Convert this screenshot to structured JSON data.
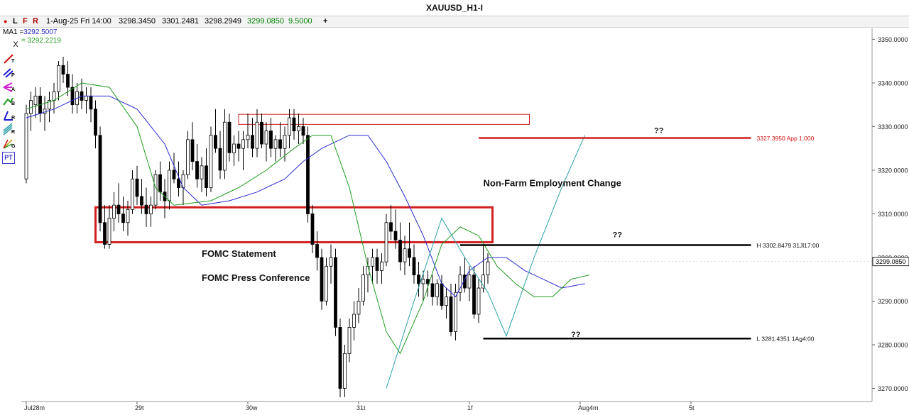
{
  "window": {
    "title": "XAUUSD_H1-I"
  },
  "info_bar": {
    "mode_buttons": [
      "L",
      "F",
      "R"
    ],
    "date": "1-Aug-25 Fri 14:00",
    "open": "3298.3450",
    "high": "3301.2481",
    "low": "3298.2949",
    "close": "3299.0850",
    "volume": "9.5000",
    "add_symbol": "+"
  },
  "indicators": {
    "ma_label": "MA1 =",
    "ma1_value": "3292.5007",
    "ma2_value": "= 3292.2219",
    "close_icon": "X",
    "ma1_color": "#2a2ad0",
    "ma2_color": "#1f9a1f"
  },
  "toolbar": [
    {
      "icon": "trendline-icon",
      "label": "T"
    },
    {
      "icon": "parallel-channel-icon",
      "label": "P"
    },
    {
      "icon": "pitchfork-icon",
      "label": "A"
    },
    {
      "icon": "brush-icon",
      "label": "B"
    },
    {
      "icon": "ray-icon",
      "label": "R"
    },
    {
      "icon": "regression-icon",
      "label": "R"
    },
    {
      "icon": "gann-icon",
      "label": "G"
    },
    {
      "icon": "pt-icon",
      "label": "PT"
    }
  ],
  "colors": {
    "bull": "#ffffff",
    "bear": "#000000",
    "zone": "#d22020",
    "fast_line": "#2aa0a8",
    "label_red": "#d01010"
  },
  "chart_data": {
    "type": "candlestick",
    "symbol": "XAUUSD",
    "timeframe": "H1",
    "ylim": [
      3267.0,
      3352.5
    ],
    "y_ticks": [
      "3350.0000",
      "3340.0000",
      "3330.0000",
      "3320.0000",
      "3310.0000",
      "3300.0000",
      "3290.0000",
      "3280.0000",
      "3270.0000"
    ],
    "y_tick_values": [
      3350,
      3340,
      3330,
      3320,
      3310,
      3300,
      3290,
      3280,
      3270
    ],
    "current_price_label": "3299.0850",
    "current_price": 3299.085,
    "x_tick_labels": [
      "Jul28m",
      "29t",
      "30w",
      "31t",
      "1f",
      "Aug4m",
      "5t"
    ],
    "x_tick_bars": [
      0,
      24,
      48,
      72,
      96,
      120,
      144
    ],
    "bars": [
      [
        3318,
        3335,
        3317,
        3333
      ],
      [
        3333,
        3338,
        3329,
        3336
      ],
      [
        3335,
        3339,
        3332,
        3337
      ],
      [
        3337,
        3339,
        3331,
        3333
      ],
      [
        3333,
        3337,
        3329,
        3334
      ],
      [
        3334,
        3338,
        3331,
        3336
      ],
      [
        3336,
        3340,
        3333,
        3338
      ],
      [
        3338,
        3345,
        3336,
        3344
      ],
      [
        3344,
        3346,
        3340,
        3342
      ],
      [
        3342,
        3345,
        3337,
        3339
      ],
      [
        3339,
        3342,
        3333,
        3335
      ],
      [
        3335,
        3340,
        3333,
        3338
      ],
      [
        3338,
        3341,
        3334,
        3336
      ],
      [
        3336,
        3339,
        3333,
        3337
      ],
      [
        3337,
        3339,
        3331,
        3334
      ],
      [
        3334,
        3336,
        3325,
        3328
      ],
      [
        3328,
        3330,
        3306,
        3308
      ],
      [
        3308,
        3312,
        3302,
        3303
      ],
      [
        3303,
        3312,
        3302,
        3309
      ],
      [
        3309,
        3315,
        3306,
        3312
      ],
      [
        3312,
        3317,
        3308,
        3310
      ],
      [
        3310,
        3314,
        3306,
        3308
      ],
      [
        3308,
        3313,
        3305,
        3311
      ],
      [
        3311,
        3320,
        3310,
        3318
      ],
      [
        3318,
        3321,
        3312,
        3314
      ],
      [
        3314,
        3318,
        3310,
        3312
      ],
      [
        3312,
        3316,
        3307,
        3310
      ],
      [
        3310,
        3314,
        3307,
        3312
      ],
      [
        3312,
        3320,
        3311,
        3319
      ],
      [
        3319,
        3322,
        3313,
        3315
      ],
      [
        3315,
        3318,
        3309,
        3313
      ],
      [
        3313,
        3322,
        3311,
        3320
      ],
      [
        3320,
        3324,
        3317,
        3318
      ],
      [
        3318,
        3322,
        3314,
        3316
      ],
      [
        3316,
        3320,
        3312,
        3319
      ],
      [
        3319,
        3329,
        3318,
        3327
      ],
      [
        3327,
        3331,
        3320,
        3322
      ],
      [
        3322,
        3326,
        3316,
        3318
      ],
      [
        3318,
        3323,
        3315,
        3321
      ],
      [
        3321,
        3325,
        3314,
        3316
      ],
      [
        3316,
        3330,
        3315,
        3328
      ],
      [
        3328,
        3334,
        3324,
        3325
      ],
      [
        3325,
        3329,
        3318,
        3320
      ],
      [
        3320,
        3334,
        3318,
        3331
      ],
      [
        3331,
        3333,
        3322,
        3324
      ],
      [
        3324,
        3328,
        3321,
        3326
      ],
      [
        3326,
        3329,
        3322,
        3325
      ],
      [
        3325,
        3329,
        3320,
        3327
      ],
      [
        3327,
        3333,
        3325,
        3328
      ],
      [
        3328,
        3332,
        3323,
        3325
      ],
      [
        3325,
        3334,
        3323,
        3331
      ],
      [
        3331,
        3333,
        3325,
        3326
      ],
      [
        3326,
        3331,
        3322,
        3329
      ],
      [
        3329,
        3332,
        3323,
        3325
      ],
      [
        3325,
        3328,
        3322,
        3327
      ],
      [
        3327,
        3331,
        3323,
        3325
      ],
      [
        3325,
        3330,
        3322,
        3328
      ],
      [
        3328,
        3334,
        3325,
        3332
      ],
      [
        3332,
        3334,
        3327,
        3329
      ],
      [
        3329,
        3333,
        3326,
        3330
      ],
      [
        3330,
        3332,
        3326,
        3328
      ],
      [
        3328,
        3330,
        3308,
        3310
      ],
      [
        3310,
        3312,
        3301,
        3303
      ],
      [
        3303,
        3306,
        3297,
        3300
      ],
      [
        3300,
        3302,
        3288,
        3290
      ],
      [
        3290,
        3300,
        3289,
        3298
      ],
      [
        3298,
        3303,
        3294,
        3300
      ],
      [
        3300,
        3302,
        3282,
        3284
      ],
      [
        3284,
        3286,
        3268,
        3270
      ],
      [
        3270,
        3280,
        3268,
        3278
      ],
      [
        3278,
        3286,
        3276,
        3284
      ],
      [
        3284,
        3290,
        3281,
        3287
      ],
      [
        3287,
        3293,
        3285,
        3290
      ],
      [
        3290,
        3298,
        3289,
        3296
      ],
      [
        3296,
        3300,
        3292,
        3298
      ],
      [
        3298,
        3302,
        3294,
        3300
      ],
      [
        3300,
        3302,
        3294,
        3297
      ],
      [
        3297,
        3301,
        3294,
        3299
      ],
      [
        3299,
        3310,
        3298,
        3308
      ],
      [
        3308,
        3312,
        3304,
        3306
      ],
      [
        3306,
        3311,
        3302,
        3304
      ],
      [
        3304,
        3308,
        3297,
        3299
      ],
      [
        3299,
        3305,
        3296,
        3302
      ],
      [
        3302,
        3308,
        3298,
        3300
      ],
      [
        3300,
        3303,
        3294,
        3296
      ],
      [
        3296,
        3299,
        3291,
        3294
      ],
      [
        3294,
        3297,
        3290,
        3295
      ],
      [
        3295,
        3297,
        3291,
        3294
      ],
      [
        3294,
        3296,
        3289,
        3291
      ],
      [
        3291,
        3295,
        3289,
        3294
      ],
      [
        3294,
        3296,
        3288,
        3289
      ],
      [
        3289,
        3293,
        3286,
        3291
      ],
      [
        3291,
        3294,
        3282,
        3283
      ],
      [
        3283,
        3294,
        3281,
        3292
      ],
      [
        3292,
        3298,
        3290,
        3296
      ],
      [
        3296,
        3300,
        3292,
        3293
      ],
      [
        3293,
        3298,
        3290,
        3296
      ],
      [
        3296,
        3298,
        3286,
        3287
      ],
      [
        3287,
        3295,
        3285,
        3293
      ],
      [
        3293,
        3303,
        3292,
        3296
      ],
      [
        3296,
        3301,
        3294,
        3299
      ]
    ],
    "ma1_blue": [
      [
        0,
        3332
      ],
      [
        6,
        3334
      ],
      [
        12,
        3337
      ],
      [
        18,
        3337
      ],
      [
        24,
        3334
      ],
      [
        30,
        3326
      ],
      [
        34,
        3316
      ],
      [
        38,
        3312
      ],
      [
        44,
        3313
      ],
      [
        50,
        3315
      ],
      [
        56,
        3318
      ],
      [
        60,
        3322
      ],
      [
        64,
        3325
      ],
      [
        70,
        3328
      ],
      [
        74,
        3328
      ],
      [
        78,
        3322
      ],
      [
        82,
        3314
      ],
      [
        86,
        3305
      ],
      [
        90,
        3294
      ],
      [
        93,
        3291
      ],
      [
        96,
        3297
      ],
      [
        100,
        3300
      ],
      [
        104,
        3300
      ],
      [
        108,
        3297
      ],
      [
        112,
        3295
      ],
      [
        116,
        3293
      ],
      [
        121,
        3294
      ]
    ],
    "ma2_green": [
      [
        0,
        3334
      ],
      [
        6,
        3336
      ],
      [
        12,
        3340
      ],
      [
        18,
        3339
      ],
      [
        24,
        3330
      ],
      [
        28,
        3316
      ],
      [
        32,
        3312
      ],
      [
        40,
        3313
      ],
      [
        46,
        3316
      ],
      [
        52,
        3320
      ],
      [
        58,
        3325
      ],
      [
        62,
        3328
      ],
      [
        66,
        3328
      ],
      [
        70,
        3316
      ],
      [
        74,
        3298
      ],
      [
        78,
        3283
      ],
      [
        81,
        3278
      ],
      [
        86,
        3290
      ],
      [
        90,
        3303
      ],
      [
        94,
        3307
      ],
      [
        98,
        3305
      ],
      [
        102,
        3298
      ],
      [
        106,
        3294
      ],
      [
        110,
        3291
      ],
      [
        114,
        3291
      ],
      [
        118,
        3295
      ],
      [
        122,
        3296
      ]
    ],
    "projection": [
      [
        78,
        3270
      ],
      [
        84,
        3290
      ],
      [
        90,
        3309
      ],
      [
        95,
        3300
      ],
      [
        100,
        3292
      ],
      [
        104,
        3282
      ],
      [
        110,
        3300
      ],
      [
        116,
        3316
      ],
      [
        121,
        3328
      ]
    ],
    "zones": [
      {
        "x1": 46,
        "x2": 109,
        "y_low": 3330.5,
        "y_high": 3332.8,
        "weight": "thin"
      },
      {
        "x1": 15,
        "x2": 101,
        "y_low": 3303.5,
        "y_high": 3311.5,
        "weight": "thick"
      }
    ],
    "level_lines": [
      {
        "y": 3327.395,
        "x1": 98,
        "x2": 157,
        "color": "#d22020",
        "label": "3327.3950 App 1.000"
      },
      {
        "y": 3302.8479,
        "x1": 94,
        "x2": 157,
        "color": "#000000",
        "label": "H 3302.8479 31Jl17:00"
      },
      {
        "y": 3281.4351,
        "x1": 99,
        "x2": 157,
        "color": "#000000",
        "label": "L 3281.4351 1Ag4:00"
      }
    ],
    "annotations": [
      {
        "text": "FOMC Statement",
        "x": 38,
        "y": 3300.2
      },
      {
        "text": "FOMC Press Conference",
        "x": 38,
        "y": 3294.6
      },
      {
        "text": "Non-Farm Employment Change",
        "x": 99,
        "y": 3316.3
      },
      {
        "text": "??",
        "x": 136,
        "y": 3328.5
      },
      {
        "text": "??",
        "x": 127,
        "y": 3304.6
      },
      {
        "text": "??",
        "x": 118,
        "y": 3281.8
      }
    ]
  }
}
